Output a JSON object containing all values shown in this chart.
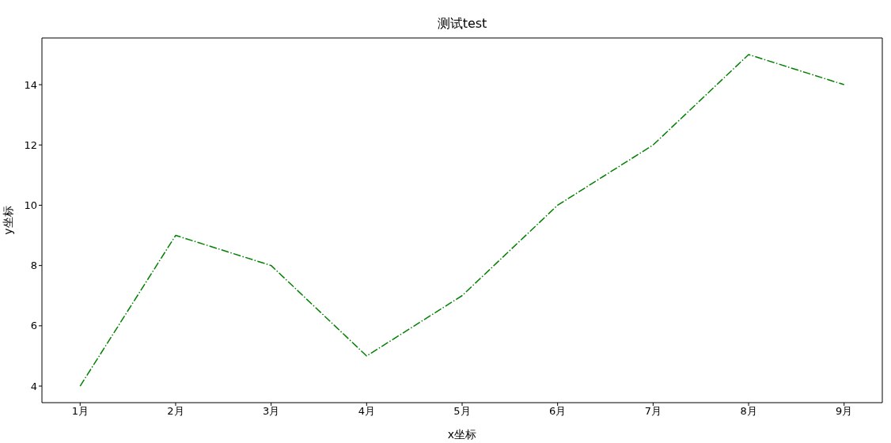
{
  "chart_data": {
    "type": "line",
    "title": "测试test",
    "xlabel": "x坐标",
    "ylabel": "y坐标",
    "categories": [
      "1月",
      "2月",
      "3月",
      "4月",
      "5月",
      "6月",
      "7月",
      "8月",
      "9月"
    ],
    "series": [
      {
        "color": "#008000",
        "values": [
          4,
          9,
          8,
          5,
          7,
          10,
          12,
          15,
          14
        ]
      }
    ],
    "ylim": [
      3.45,
      15.55
    ],
    "yticks": [
      4,
      6,
      8,
      10,
      12,
      14
    ],
    "grid": false,
    "legend": false,
    "marker": "none",
    "line_style": "dashdot"
  }
}
